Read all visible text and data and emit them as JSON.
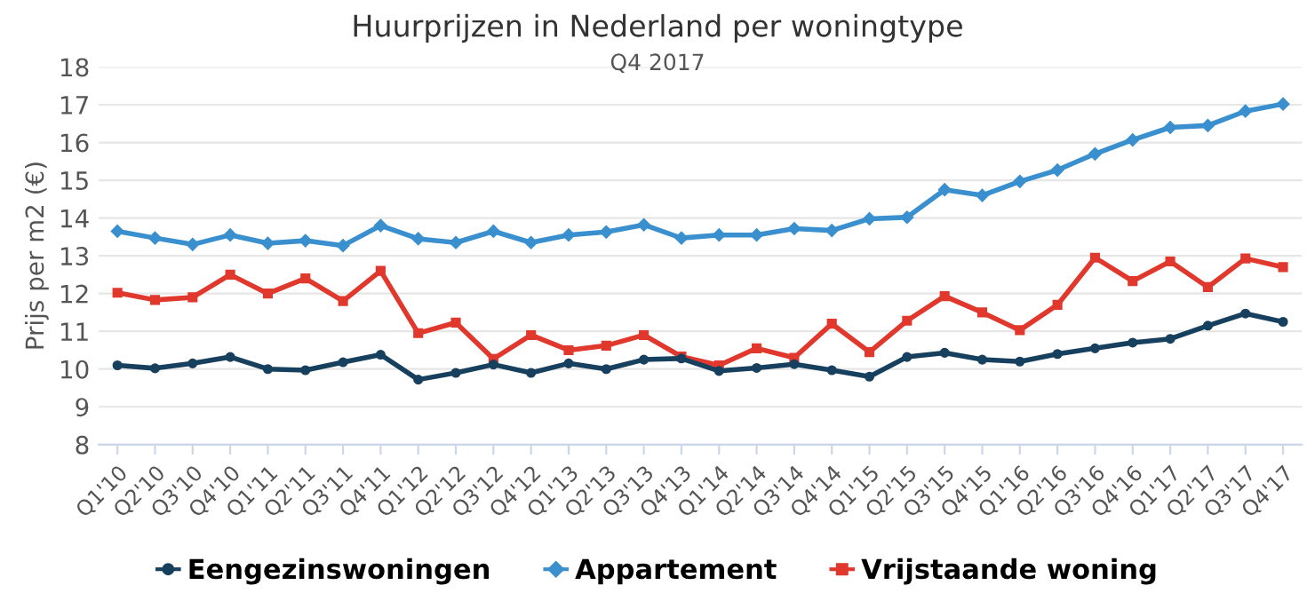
{
  "chart_data": {
    "type": "line",
    "title": "Huurprijzen in Nederland per woningtype",
    "subtitle": "Q4 2017",
    "ylabel": "Prijs per m2 (€)",
    "categories": [
      "Q1'10",
      "Q2'10",
      "Q3'10",
      "Q4'10",
      "Q1'11",
      "Q2'11",
      "Q3'11",
      "Q4'11",
      "Q1'12",
      "Q2'12",
      "Q3'12",
      "Q4'12",
      "Q1'13",
      "Q2'13",
      "Q3'13",
      "Q4'13",
      "Q1'14",
      "Q2'14",
      "Q3'14",
      "Q4'14",
      "Q1'15",
      "Q2'15",
      "Q3'15",
      "Q4'15",
      "Q1'16",
      "Q2'16",
      "Q3'16",
      "Q4'16",
      "Q1'17",
      "Q2'17",
      "Q3'17",
      "Q4'17"
    ],
    "series": [
      {
        "name": "Eengezinswoningen",
        "color": "#17405e",
        "marker": "circle",
        "values": [
          10.1,
          10.02,
          10.15,
          10.32,
          10.0,
          9.97,
          10.18,
          10.38,
          9.72,
          9.9,
          10.12,
          9.9,
          10.15,
          10.0,
          10.25,
          10.28,
          9.95,
          10.03,
          10.13,
          9.97,
          9.8,
          10.32,
          10.43,
          10.25,
          10.2,
          10.4,
          10.55,
          10.7,
          10.8,
          11.15,
          11.47,
          11.25
        ]
      },
      {
        "name": "Appartement",
        "color": "#3a8fce",
        "marker": "diamond",
        "values": [
          13.65,
          13.47,
          13.3,
          13.55,
          13.33,
          13.4,
          13.27,
          13.8,
          13.45,
          13.35,
          13.65,
          13.35,
          13.55,
          13.63,
          13.82,
          13.47,
          13.55,
          13.55,
          13.72,
          13.67,
          13.98,
          14.02,
          14.75,
          14.6,
          14.97,
          15.27,
          15.7,
          16.07,
          16.4,
          16.45,
          16.83,
          17.02
        ]
      },
      {
        "name": "Vrijstaande woning",
        "color": "#e0382c",
        "marker": "square",
        "values": [
          12.02,
          11.83,
          11.9,
          12.5,
          12.0,
          12.4,
          11.8,
          12.6,
          10.95,
          11.23,
          10.27,
          10.9,
          10.5,
          10.62,
          10.9,
          10.33,
          10.1,
          10.55,
          10.3,
          11.2,
          10.45,
          11.28,
          11.93,
          11.5,
          11.03,
          11.7,
          12.95,
          12.33,
          12.85,
          12.17,
          12.93,
          12.7
        ]
      }
    ],
    "ylim": [
      8,
      18
    ],
    "yticks": [
      8,
      9,
      10,
      11,
      12,
      13,
      14,
      15,
      16,
      17,
      18
    ],
    "grid": "y",
    "legend": "bottom",
    "line_style": "solid"
  }
}
